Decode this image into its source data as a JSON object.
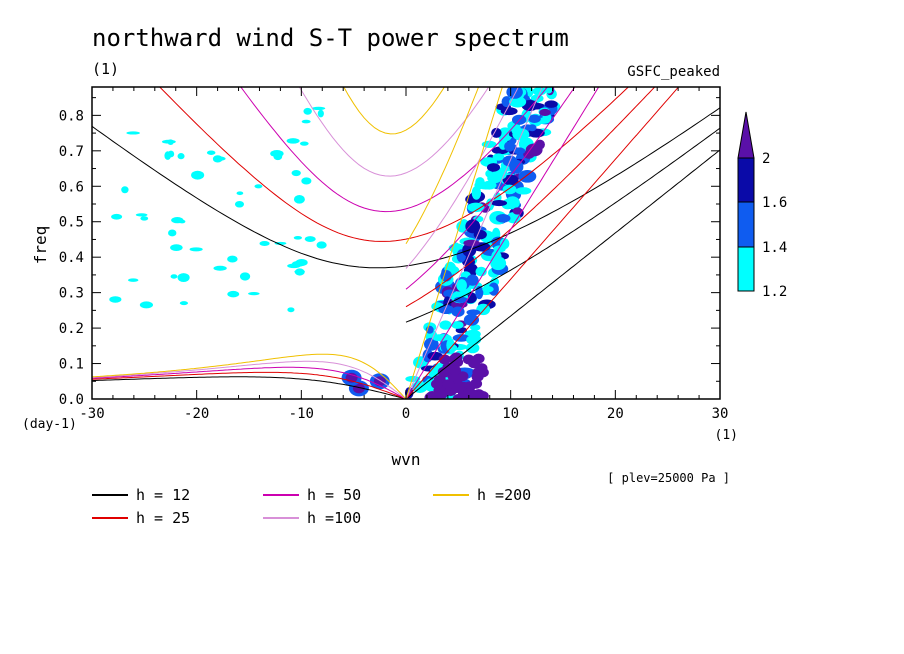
{
  "chart_data": {
    "type": "line",
    "title": "northward wind S-T power spectrum",
    "subtitle": "(1)",
    "model_label": "GSFC_peaked",
    "xlabel": "wvn",
    "ylabel": "freq",
    "x_unit": "(1)",
    "y_unit": "(day-1)",
    "level_note": "[ plev=25000 Pa ]",
    "xlim": [
      -30,
      30
    ],
    "ylim": [
      0,
      0.88
    ],
    "x_ticks": [
      -30,
      -20,
      -10,
      0,
      10,
      20,
      30
    ],
    "y_ticks": [
      0.0,
      0.1,
      0.2,
      0.3,
      0.4,
      0.5,
      0.6,
      0.7,
      0.8
    ],
    "x_tick_labels": [
      "-30",
      "-20",
      "-10",
      "0",
      "10",
      "20",
      "30"
    ],
    "y_tick_labels": [
      "0.0",
      "0.1",
      "0.2",
      "0.3",
      "0.4",
      "0.5",
      "0.6",
      "0.7",
      "0.8"
    ],
    "colorbar": {
      "levels": [
        1.2,
        1.4,
        1.6,
        2
      ],
      "level_labels": [
        "1.2",
        "1.4",
        "1.6",
        "2"
      ],
      "colors": [
        "#00ffff",
        "#0f5cf0",
        "#0a0aa8",
        "#5a10a8"
      ]
    },
    "series": [
      {
        "name": "h = 12",
        "h": 12,
        "color": "#000000"
      },
      {
        "name": "h = 25",
        "h": 25,
        "color": "#e00000"
      },
      {
        "name": "h = 50",
        "h": 50,
        "color": "#cc00b0"
      },
      {
        "name": "h =100",
        "h": 100,
        "color": "#d890d8"
      },
      {
        "name": "h =200",
        "h": 200,
        "color": "#f0c000"
      }
    ]
  }
}
